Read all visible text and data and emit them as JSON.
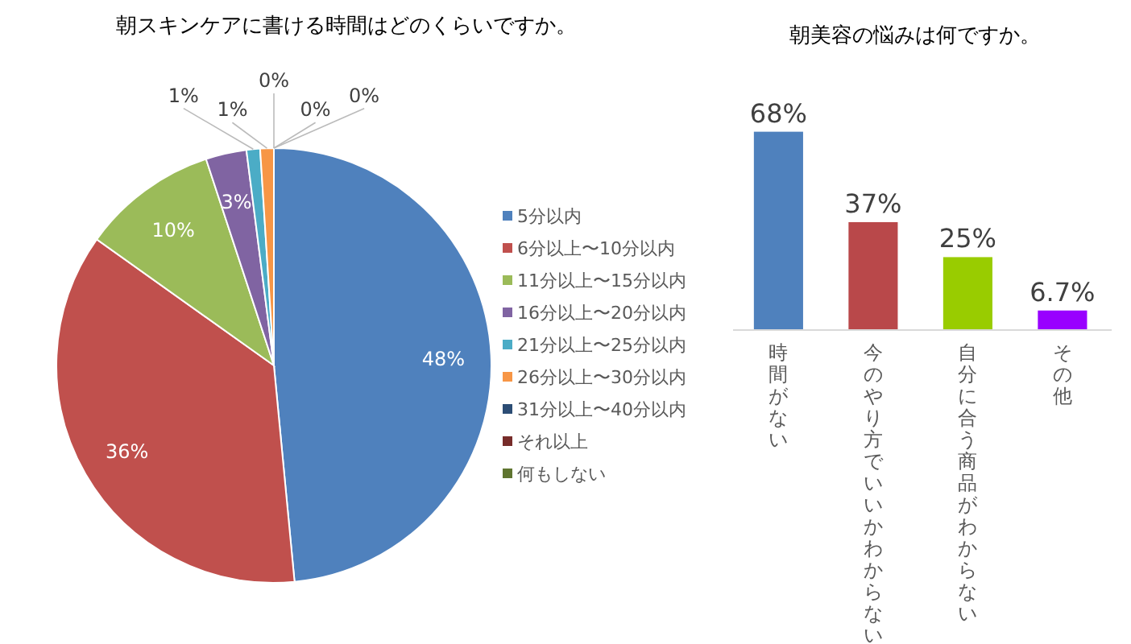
{
  "chart_data": [
    {
      "type": "pie",
      "title": "朝スキンケアに書ける時間はどのくらいですか。",
      "categories": [
        "5分以内",
        "6分以上〜10分以内",
        "11分以上〜15分以内",
        "16分以上〜20分以内",
        "21分以上〜25分以内",
        "26分以上〜30分以内",
        "31分以上〜40分以内",
        "それ以上",
        "何もしない"
      ],
      "values": [
        48,
        36,
        10,
        3,
        1,
        1,
        0,
        0,
        0
      ],
      "colors": [
        "#4f81bd",
        "#c0504d",
        "#9bbb59",
        "#8064a2",
        "#4bacc6",
        "#f79646",
        "#2c4d75",
        "#772c2a",
        "#5f7530"
      ],
      "value_labels": [
        "48%",
        "36%",
        "10%",
        "3%",
        "1%",
        "1%",
        "0%",
        "0%",
        "0%"
      ],
      "legend": "right"
    },
    {
      "type": "bar",
      "title": "朝美容の悩みは何ですか。",
      "categories": [
        "時間がない",
        "今のやり方でいいかわからない",
        "自分に合う商品がわからない",
        "その他"
      ],
      "values": [
        68,
        37,
        25,
        6.7
      ],
      "colors": [
        "#4f81bd",
        "#b9484a",
        "#99cc00",
        "#9900ff"
      ],
      "value_labels": [
        "68%",
        "37%",
        "25%",
        "6.7%"
      ]
    }
  ]
}
